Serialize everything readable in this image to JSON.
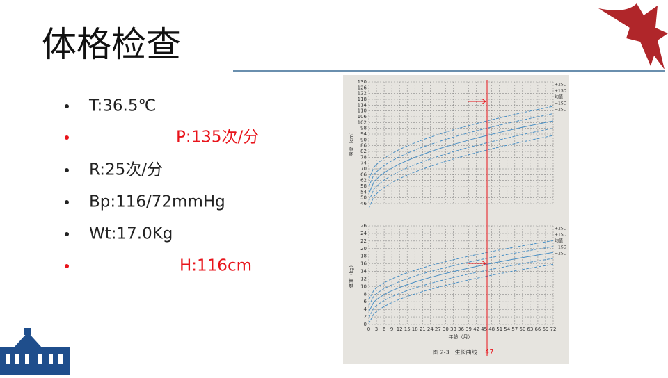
{
  "header": {
    "title": "体格检查"
  },
  "bullets": [
    {
      "text": "T:36.5℃",
      "color": "#222222"
    },
    {
      "text": "P:135次/分",
      "color": "#e8141b"
    },
    {
      "text": "R:25次/分",
      "color": "#222222"
    },
    {
      "text": "Bp:116/72mmHg",
      "color": "#222222"
    },
    {
      "text": "Wt:17.0Kg",
      "color": "#222222"
    },
    {
      "text": "H:116cm",
      "color": "#e8141b"
    }
  ],
  "figure": {
    "caption": "图 2-3　生长曲线",
    "marker_label": "47",
    "height_chart": {
      "axis_label": "身高（cm）",
      "ylim": [
        46,
        130
      ],
      "yticks": [
        46,
        50,
        54,
        58,
        62,
        66,
        70,
        74,
        78,
        82,
        86,
        90,
        94,
        98,
        102,
        106,
        110,
        114,
        118,
        122,
        126,
        130
      ],
      "sd_labels": [
        "+2SD",
        "+1SD",
        "均值",
        "−1SD",
        "−2SD"
      ]
    },
    "weight_chart": {
      "axis_label": "体重（kg）",
      "ylim": [
        0,
        26
      ],
      "yticks": [
        0,
        2,
        4,
        6,
        8,
        10,
        12,
        14,
        16,
        18,
        20,
        22,
        24,
        26
      ],
      "sd_labels": [
        "+2SD",
        "+1SD",
        "均值",
        "−1SD",
        "−2SD"
      ]
    },
    "x_axis": {
      "label": "年龄（月）",
      "xlim": [
        0,
        72
      ],
      "xticks": [
        0,
        3,
        6,
        9,
        12,
        15,
        18,
        21,
        24,
        27,
        30,
        33,
        36,
        39,
        42,
        45,
        48,
        51,
        54,
        57,
        60,
        63,
        66,
        69,
        72
      ]
    }
  }
}
